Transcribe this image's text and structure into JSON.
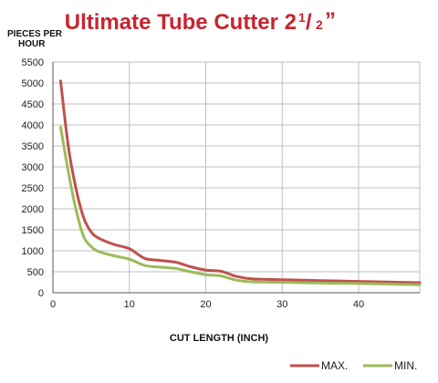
{
  "chart_data": {
    "type": "line",
    "title": "Ultimate Tube Cutter 2",
    "title_fraction_num": "1",
    "title_fraction_den": "2",
    "title_inch_mark": "”",
    "ylabel_line1": "PIECES PER",
    "ylabel_line2": "HOUR",
    "xlabel": "CUT LENGTH (INCH)",
    "xlim": [
      0,
      48
    ],
    "ylim": [
      0,
      5500
    ],
    "xticks": [
      0,
      10,
      20,
      30,
      40
    ],
    "yticks": [
      0,
      500,
      1000,
      1500,
      2000,
      2500,
      3000,
      3500,
      4000,
      4500,
      5000,
      5500
    ],
    "grid": true,
    "legend_position": "bottom-right",
    "series": [
      {
        "name": "MAX.",
        "color": "#c0504d",
        "x": [
          1,
          2,
          3,
          4,
          5,
          6,
          8,
          10,
          12,
          14,
          16,
          18,
          20,
          22,
          24,
          26,
          30,
          35,
          40,
          45,
          48
        ],
        "y": [
          5050,
          3500,
          2500,
          1800,
          1450,
          1300,
          1150,
          1050,
          820,
          770,
          730,
          620,
          540,
          510,
          390,
          330,
          310,
          290,
          270,
          250,
          240
        ]
      },
      {
        "name": "MIN.",
        "color": "#9bbb59",
        "x": [
          1,
          2,
          3,
          4,
          5,
          6,
          8,
          10,
          12,
          14,
          16,
          18,
          20,
          22,
          24,
          26,
          30,
          35,
          40,
          45,
          48
        ],
        "y": [
          3950,
          2900,
          2000,
          1350,
          1100,
          980,
          880,
          800,
          650,
          610,
          580,
          500,
          430,
          400,
          300,
          260,
          250,
          230,
          220,
          200,
          190
        ]
      }
    ]
  }
}
